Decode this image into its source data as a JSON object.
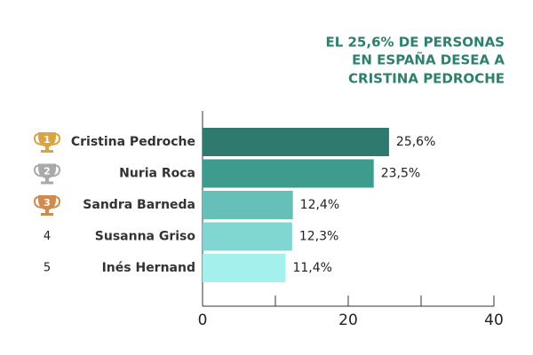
{
  "chart_data": {
    "type": "bar",
    "orientation": "horizontal",
    "title": [
      "EL 25,6% DE PERSONAS",
      "EN ESPAÑA DESEA A",
      "CRISTINA PEDROCHE"
    ],
    "ranks": [
      1,
      2,
      3,
      4,
      5
    ],
    "categories": [
      "Cristina Pedroche",
      "Nuria Roca",
      "Sandra Barneda",
      "Susanna Griso",
      "Inés Hernand"
    ],
    "values": [
      25.6,
      23.5,
      12.4,
      12.3,
      11.4
    ],
    "value_labels": [
      "25,6%",
      "23,5%",
      "12,4%",
      "12,3%",
      "11,4%"
    ],
    "colors": [
      "#2e7a6e",
      "#3d9c8d",
      "#66bfb9",
      "#80d6d0",
      "#a3f0ec"
    ],
    "xlim": [
      0,
      40
    ],
    "xticks": [
      0,
      20,
      40
    ],
    "xminorticks": [
      10,
      30
    ]
  }
}
